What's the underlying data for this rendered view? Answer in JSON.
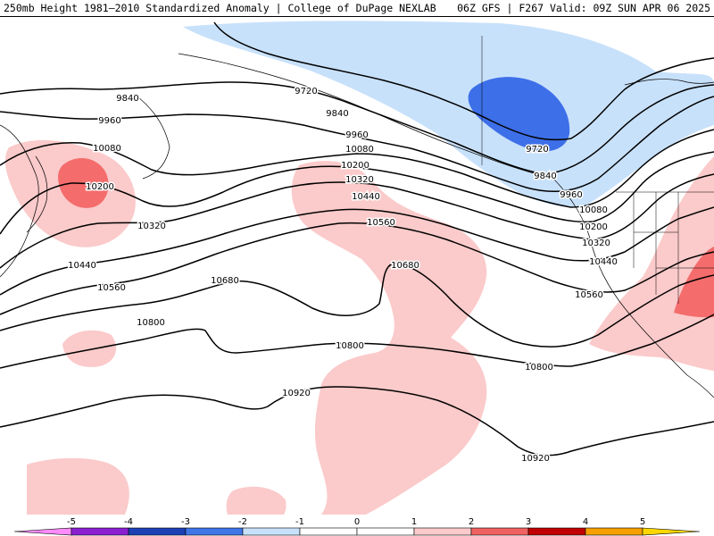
{
  "header": {
    "left_title": "250mb Height 1981–2010 Standardized Anomaly | College of DuPage NEXLAB",
    "right_title": "06Z GFS | F267 Valid: 09Z SUN APR 06 2025"
  },
  "colors": {
    "strong_neg": "#3d6fe8",
    "weak_neg": "#c8e1fb",
    "weak_pos": "#fbcaca",
    "strong_pos": "#f46c6c",
    "contour": "#000000"
  },
  "contours": [
    {
      "value": "9720",
      "labels": [
        {
          "text": "9720"
        },
        {
          "text": "9720"
        }
      ]
    },
    {
      "value": "9840",
      "labels": [
        {
          "text": "9840"
        },
        {
          "text": "9840"
        },
        {
          "text": "9840"
        }
      ]
    },
    {
      "value": "9960",
      "labels": [
        {
          "text": "9960"
        },
        {
          "text": "9960"
        },
        {
          "text": "9960"
        }
      ]
    },
    {
      "value": "10080",
      "labels": [
        {
          "text": "10080"
        },
        {
          "text": "10080"
        },
        {
          "text": "10080"
        }
      ]
    },
    {
      "value": "10200",
      "labels": [
        {
          "text": "10200"
        },
        {
          "text": "10200"
        },
        {
          "text": "10200"
        }
      ]
    },
    {
      "value": "10320",
      "labels": [
        {
          "text": "10320"
        },
        {
          "text": "10320"
        },
        {
          "text": "10320"
        }
      ]
    },
    {
      "value": "10440",
      "labels": [
        {
          "text": "10440"
        },
        {
          "text": "10440"
        },
        {
          "text": "10440"
        }
      ]
    },
    {
      "value": "10560",
      "labels": [
        {
          "text": "10560"
        },
        {
          "text": "10560"
        },
        {
          "text": "10560"
        }
      ]
    },
    {
      "value": "10680",
      "labels": [
        {
          "text": "10680"
        },
        {
          "text": "10680"
        }
      ]
    },
    {
      "value": "10800",
      "labels": [
        {
          "text": "10800"
        },
        {
          "text": "10800"
        },
        {
          "text": "10800"
        }
      ]
    },
    {
      "value": "10920",
      "labels": [
        {
          "text": "10920"
        },
        {
          "text": "10920"
        }
      ]
    }
  ],
  "colorbar": {
    "ticks": [
      "-5",
      "-4",
      "-3",
      "-2",
      "-1",
      "0",
      "1",
      "2",
      "3",
      "4",
      "5"
    ],
    "colors": [
      "#ff8cff",
      "#8a1fd1",
      "#1c3fb5",
      "#3f76e8",
      "#c8e1fb",
      "#ffffff",
      "#ffffff",
      "#fbcaca",
      "#f06262",
      "#c00000",
      "#f6a000",
      "#ffd700"
    ]
  }
}
